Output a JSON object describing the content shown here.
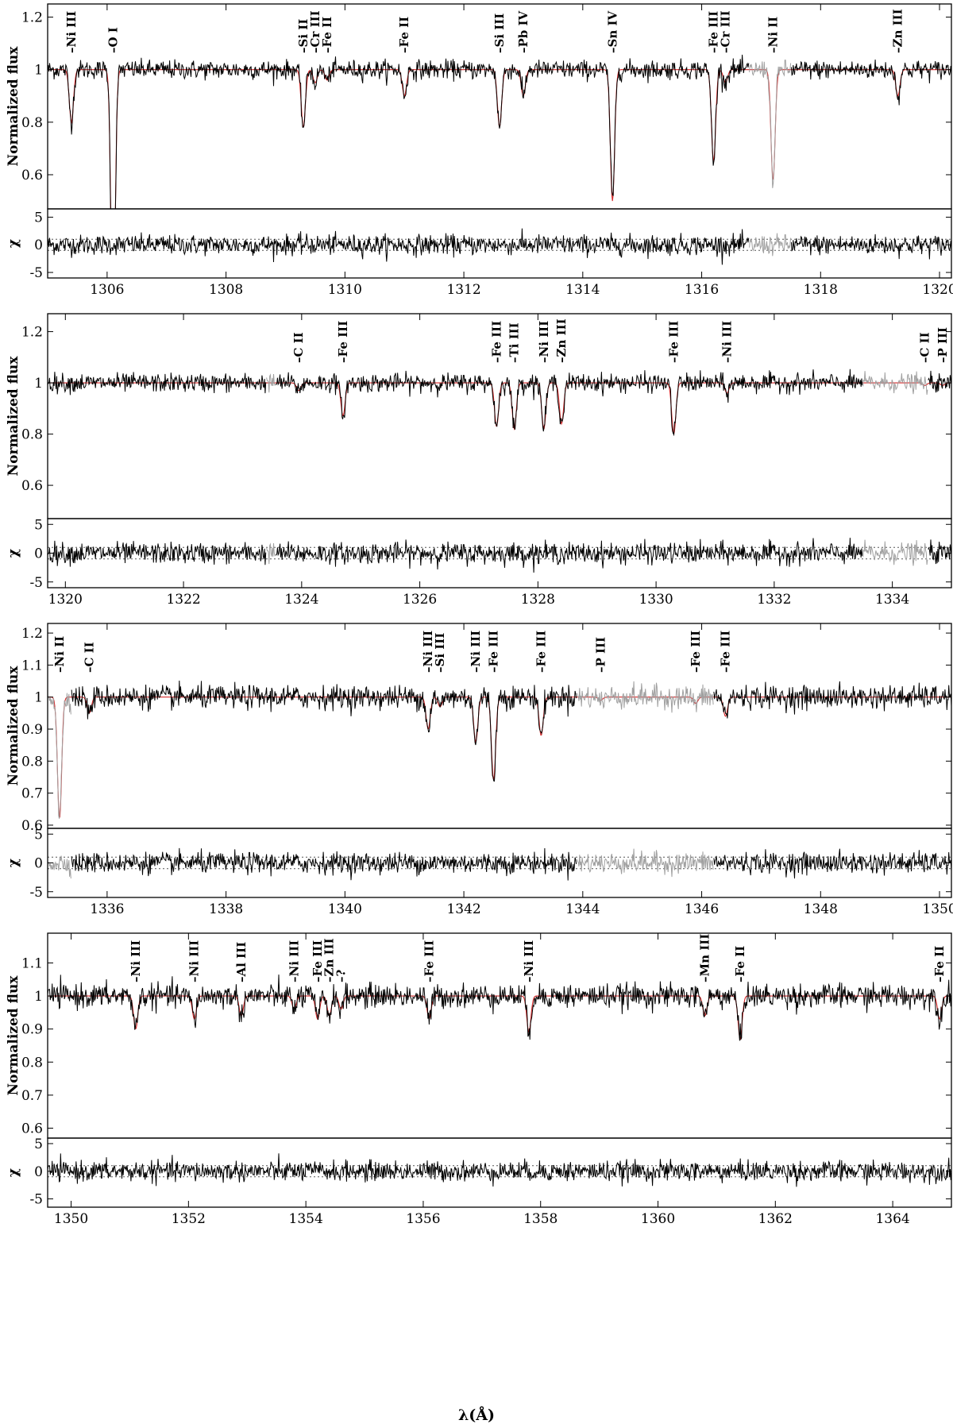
{
  "chart_data": {
    "type": "line",
    "xlabel": "λ(Å)",
    "ylabel_top": "Normalized flux",
    "ylabel_bottom": "χ",
    "series": [
      {
        "name": "observed",
        "color": "#000000"
      },
      {
        "name": "model",
        "color": "#d62728"
      },
      {
        "name": "excluded",
        "color": "#a0a0a0"
      }
    ],
    "panels": [
      {
        "xlim": [
          1305,
          1320.2
        ],
        "xticks": [
          1306,
          1308,
          1310,
          1312,
          1314,
          1316,
          1318,
          1320
        ],
        "ylim": [
          0.47,
          1.25
        ],
        "yticks": [
          0.6,
          0.8,
          1,
          1.2
        ],
        "chi_ylim": [
          -6,
          6.5
        ],
        "chi_yticks": [
          -5,
          0,
          5
        ],
        "masked": [
          [
            1316.8,
            1317.5
          ]
        ],
        "lines": [
          {
            "wl": 1305.4,
            "depth": 0.8,
            "label": "Ni III"
          },
          {
            "wl": 1306.1,
            "depth": 0.0,
            "label": "O I"
          },
          {
            "wl": 1309.3,
            "depth": 0.78,
            "label": "Si II"
          },
          {
            "wl": 1309.5,
            "depth": 0.95,
            "label": "Cr III"
          },
          {
            "wl": 1309.7,
            "depth": 0.96,
            "label": "Fe II"
          },
          {
            "wl": 1311.0,
            "depth": 0.9,
            "label": "Fe II"
          },
          {
            "wl": 1312.6,
            "depth": 0.78,
            "label": "Si III"
          },
          {
            "wl": 1313.0,
            "depth": 0.9,
            "label": "Pb IV"
          },
          {
            "wl": 1314.5,
            "depth": 0.5,
            "label": "Sn IV"
          },
          {
            "wl": 1316.2,
            "depth": 0.65,
            "label": "Fe III"
          },
          {
            "wl": 1316.4,
            "depth": 0.95,
            "label": "Cr III"
          },
          {
            "wl": 1317.2,
            "depth": 0.58,
            "label": "Ni II"
          },
          {
            "wl": 1319.3,
            "depth": 0.9,
            "label": "Zn III"
          }
        ]
      },
      {
        "xlim": [
          1319.7,
          1335
        ],
        "xticks": [
          1320,
          1322,
          1324,
          1326,
          1328,
          1330,
          1332,
          1334
        ],
        "ylim": [
          0.47,
          1.27
        ],
        "yticks": [
          0.6,
          0.8,
          1,
          1.2
        ],
        "chi_ylim": [
          -6,
          6
        ],
        "chi_yticks": [
          -5,
          0,
          5
        ],
        "masked": [
          [
            1323.4,
            1323.55
          ],
          [
            1333.5,
            1334.6
          ]
        ],
        "lines": [
          {
            "wl": 1323.95,
            "depth": 0.97,
            "label": "C II"
          },
          {
            "wl": 1324.7,
            "depth": 0.87,
            "label": "Fe III"
          },
          {
            "wl": 1327.3,
            "depth": 0.83,
            "label": "Fe III"
          },
          {
            "wl": 1327.6,
            "depth": 0.82,
            "label": "Ti III"
          },
          {
            "wl": 1328.1,
            "depth": 0.82,
            "label": "Ni III"
          },
          {
            "wl": 1328.4,
            "depth": 0.84,
            "label": "Zn III"
          },
          {
            "wl": 1330.3,
            "depth": 0.8,
            "label": "Fe III"
          },
          {
            "wl": 1331.2,
            "depth": 0.96,
            "label": "Ni III"
          },
          {
            "wl": 1334.55,
            "depth": 0.99,
            "label": "C II"
          },
          {
            "wl": 1334.85,
            "depth": 0.99,
            "label": "P III"
          }
        ]
      },
      {
        "xlim": [
          1335,
          1350.2
        ],
        "xticks": [
          1336,
          1338,
          1340,
          1342,
          1344,
          1346,
          1348,
          1350
        ],
        "ylim": [
          0.59,
          1.23
        ],
        "yticks": [
          0.6,
          0.7,
          0.8,
          0.9,
          1,
          1.1,
          1.2
        ],
        "chi_ylim": [
          -6,
          6
        ],
        "chi_yticks": [
          -5,
          0,
          5
        ],
        "masked": [
          [
            1335,
            1335.4
          ],
          [
            1343.9,
            1346.2
          ]
        ],
        "lines": [
          {
            "wl": 1335.2,
            "depth": 0.62,
            "label": "Ni II"
          },
          {
            "wl": 1335.7,
            "depth": 0.95,
            "label": "C II"
          },
          {
            "wl": 1341.4,
            "depth": 0.9,
            "label": "Ni III"
          },
          {
            "wl": 1341.6,
            "depth": 0.97,
            "label": "Si III"
          },
          {
            "wl": 1342.2,
            "depth": 0.86,
            "label": "Ni III"
          },
          {
            "wl": 1342.5,
            "depth": 0.74,
            "label": "Fe III"
          },
          {
            "wl": 1343.3,
            "depth": 0.88,
            "label": "Fe III"
          },
          {
            "wl": 1344.3,
            "depth": 0.99,
            "label": "P III"
          },
          {
            "wl": 1345.9,
            "depth": 0.98,
            "label": "Fe III"
          },
          {
            "wl": 1346.4,
            "depth": 0.94,
            "label": "Fe III"
          }
        ]
      },
      {
        "xlim": [
          1349.6,
          1365
        ],
        "xticks": [
          1350,
          1352,
          1354,
          1356,
          1358,
          1360,
          1362,
          1364
        ],
        "ylim": [
          0.57,
          1.19
        ],
        "yticks": [
          0.6,
          0.7,
          0.8,
          0.9,
          1,
          1.1
        ],
        "chi_ylim": [
          -6.5,
          6
        ],
        "chi_yticks": [
          -5,
          0,
          5
        ],
        "masked": [],
        "lines": [
          {
            "wl": 1351.1,
            "depth": 0.9,
            "label": "Ni III"
          },
          {
            "wl": 1352.1,
            "depth": 0.93,
            "label": "Ni III"
          },
          {
            "wl": 1352.9,
            "depth": 0.94,
            "label": "Al III"
          },
          {
            "wl": 1353.8,
            "depth": 0.96,
            "label": "Ni III"
          },
          {
            "wl": 1354.2,
            "depth": 0.93,
            "label": "Fe III"
          },
          {
            "wl": 1354.4,
            "depth": 0.94,
            "label": "Zn III"
          },
          {
            "wl": 1354.6,
            "depth": 0.96,
            "label": "?"
          },
          {
            "wl": 1356.1,
            "depth": 0.93,
            "label": "Fe III"
          },
          {
            "wl": 1357.8,
            "depth": 0.89,
            "label": "Ni III"
          },
          {
            "wl": 1360.8,
            "depth": 0.94,
            "label": "Mn III"
          },
          {
            "wl": 1361.4,
            "depth": 0.87,
            "label": "Fe II"
          },
          {
            "wl": 1364.8,
            "depth": 0.93,
            "label": "Fe II"
          }
        ]
      }
    ]
  }
}
